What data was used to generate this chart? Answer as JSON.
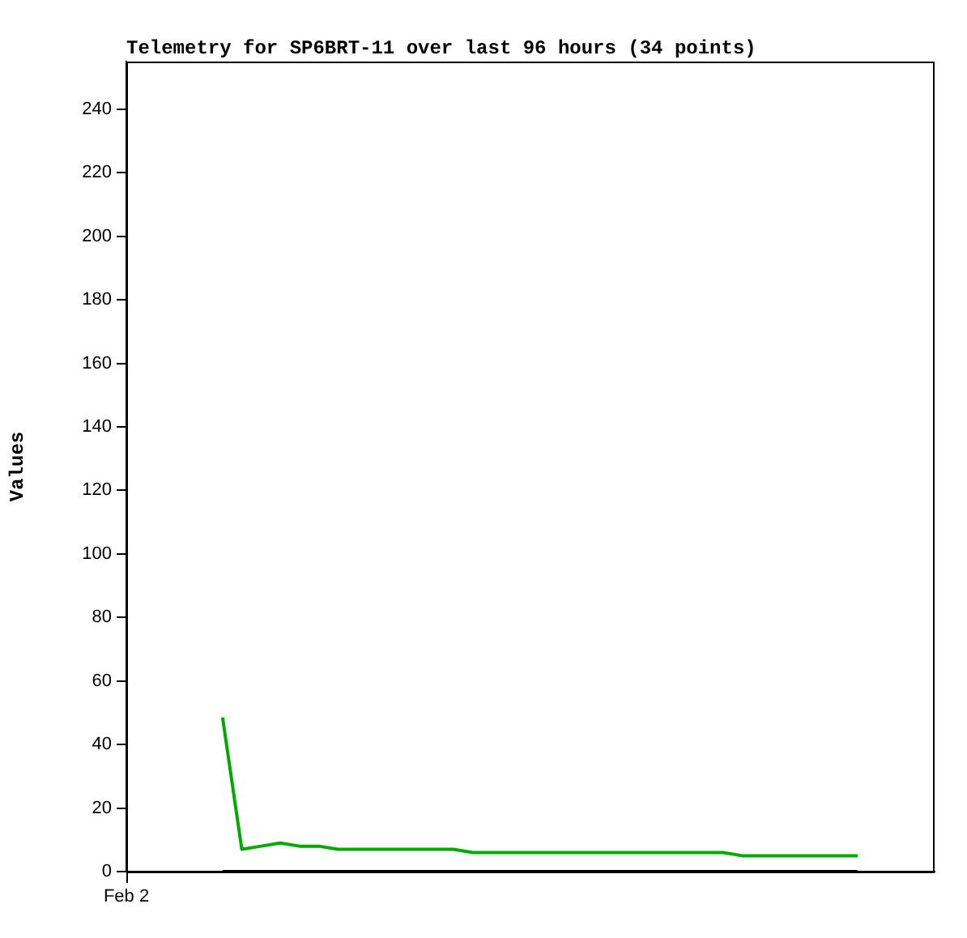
{
  "chart_data": {
    "type": "line",
    "title": "Telemetry for SP6BRT-11 over last 96 hours (34 points)",
    "ylabel": "Values",
    "annotations": [
      "Feb 2"
    ],
    "categories": [
      null,
      null,
      null,
      null,
      null,
      null,
      null,
      null,
      null,
      null,
      null,
      null,
      null,
      null,
      null,
      null,
      null,
      null,
      null,
      null,
      null,
      null,
      null,
      null,
      null,
      null,
      null,
      null,
      null,
      null,
      null,
      null,
      null,
      null,
      null,
      null,
      null,
      null,
      null,
      null,
      null,
      null,
      null
    ],
    "ylim": [
      0,
      255
    ],
    "yticks": [
      0,
      20,
      40,
      60,
      80,
      100,
      120,
      140,
      160,
      180,
      200,
      220,
      240
    ],
    "grid": false,
    "legend": false,
    "marker": "none",
    "line_style": "solid",
    "tick_labels": "y",
    "series": [
      {
        "color": "#00aa00",
        "values": [
          null,
          null,
          null,
          null,
          null,
          48.5,
          7,
          8,
          9,
          8,
          8,
          7,
          7,
          7,
          7,
          7,
          7,
          7,
          6,
          6,
          6,
          6,
          6,
          6,
          6,
          6,
          6,
          6,
          6,
          6,
          6,
          6,
          5,
          5,
          5,
          5,
          5,
          5,
          5,
          null,
          null,
          null,
          null
        ]
      },
      {
        "color": "#000000",
        "values": [
          null,
          null,
          null,
          null,
          null,
          0,
          0,
          0,
          0,
          0,
          0,
          0,
          0,
          0,
          0,
          0,
          0,
          0,
          0,
          0,
          0,
          0,
          0,
          0,
          0,
          0,
          0,
          0,
          0,
          0,
          0,
          0,
          0,
          0,
          0,
          0,
          0,
          0,
          0,
          null,
          null,
          null,
          null
        ]
      }
    ]
  }
}
